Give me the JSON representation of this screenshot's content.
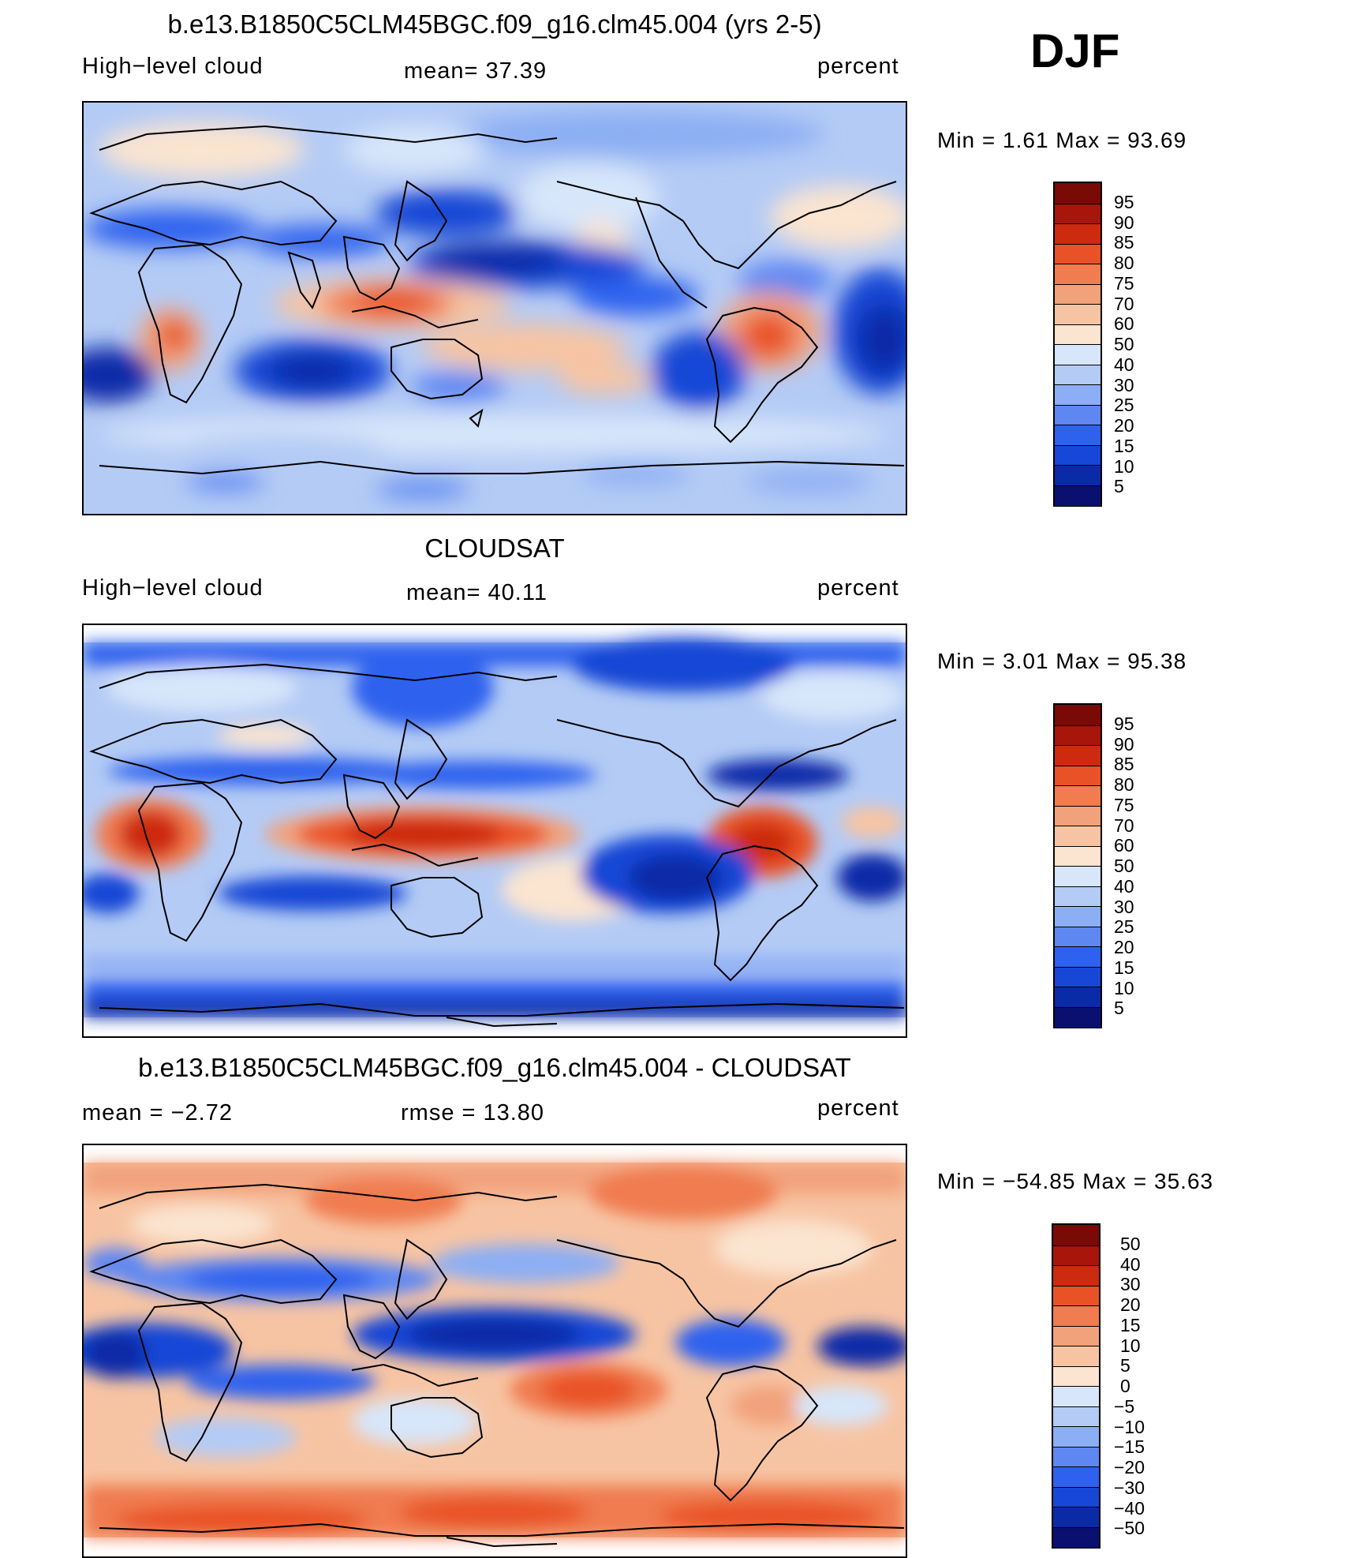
{
  "season": "DJF",
  "colors": {
    "seq": [
      "#0a1070",
      "#0a2ba8",
      "#1747d6",
      "#2e62ee",
      "#5e87f2",
      "#8caef4",
      "#b4cbf5",
      "#d7e6fa",
      "#fbe4d0",
      "#f7c4a3",
      "#f2a27b",
      "#f07c4f",
      "#e95227",
      "#cd2a10",
      "#a8150b",
      "#7a0a05"
    ],
    "diff": [
      "#0a1070",
      "#0a2ba8",
      "#1747d6",
      "#2e62ee",
      "#5e87f2",
      "#8caef4",
      "#b4cbf5",
      "#d7e6fa",
      "#fbe4d0",
      "#f7c4a3",
      "#f2a27b",
      "#f07c4f",
      "#e95227",
      "#cd2a10",
      "#a8150b",
      "#7a0a05"
    ]
  },
  "panels": [
    {
      "title": "b.e13.B1850C5CLM45BGC.f09_g16.clm45.004 (yrs 2-5)",
      "left_label": "High−level cloud",
      "center_label": "mean=   37.39",
      "right_label": "percent",
      "min_max": "Min  =     1.61  Max  =    93.69",
      "colorbar_labels": [
        "95",
        "90",
        "85",
        "80",
        "75",
        "70",
        "60",
        "50",
        "40",
        "30",
        "25",
        "20",
        "15",
        "10",
        "5"
      ]
    },
    {
      "title": "CLOUDSAT",
      "left_label": "High−level cloud",
      "center_label": "mean=   40.11",
      "right_label": "percent",
      "min_max": "Min  =     3.01  Max  =    95.38",
      "colorbar_labels": [
        "95",
        "90",
        "85",
        "80",
        "75",
        "70",
        "60",
        "50",
        "40",
        "30",
        "25",
        "20",
        "15",
        "10",
        "5"
      ]
    },
    {
      "title": "b.e13.B1850C5CLM45BGC.f09_g16.clm45.004 - CLOUDSAT",
      "left_label": "mean  =    −2.72",
      "center_label": "rmse  =    13.80",
      "right_label": "percent",
      "min_max": "Min  = −54.85  Max  =    35.63",
      "colorbar_labels": [
        "50",
        "40",
        "30",
        "20",
        "15",
        "10",
        "5",
        "0",
        "−5",
        "−10",
        "−15",
        "−20",
        "−30",
        "−40",
        "−50"
      ]
    }
  ]
}
